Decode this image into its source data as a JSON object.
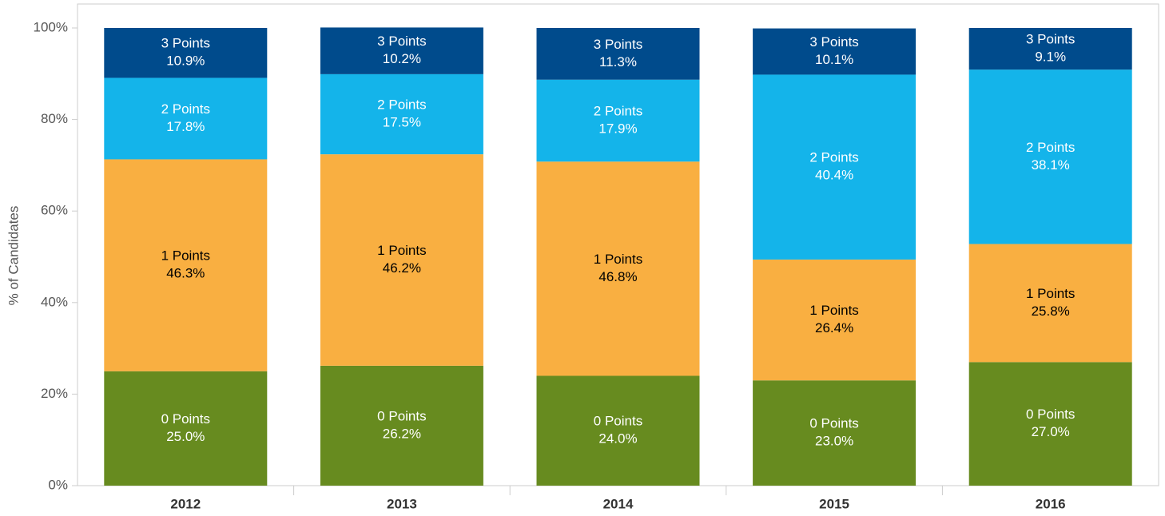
{
  "chart_data": {
    "type": "stacked_bar",
    "y_label": "% of Candidates",
    "categories": [
      "2012",
      "2013",
      "2014",
      "2015",
      "2016"
    ],
    "series": [
      {
        "name": "0 Points",
        "color": "#678b1f",
        "values": [
          25.0,
          26.2,
          24.0,
          23.0,
          27.0
        ],
        "value_labels": [
          "25.0%",
          "26.2%",
          "24.0%",
          "23.0%",
          "27.0%"
        ]
      },
      {
        "name": "1 Points",
        "color": "#f9af41",
        "values": [
          46.3,
          46.2,
          46.8,
          26.4,
          25.8
        ],
        "value_labels": [
          "46.3%",
          "46.2%",
          "46.8%",
          "26.4%",
          "25.8%"
        ]
      },
      {
        "name": "2 Points",
        "color": "#14b4ea",
        "values": [
          17.8,
          17.5,
          17.9,
          40.4,
          38.1
        ],
        "value_labels": [
          "17.8%",
          "17.5%",
          "17.9%",
          "40.4%",
          "38.1%"
        ]
      },
      {
        "name": "3 Points",
        "color": "#004b8c",
        "values": [
          10.9,
          10.2,
          11.3,
          10.1,
          9.1
        ],
        "value_labels": [
          "10.9%",
          "10.2%",
          "11.3%",
          "10.1%",
          "9.1%"
        ]
      }
    ],
    "ylim": [
      0,
      100
    ],
    "yticks": [
      {
        "value": 0,
        "label": "0%"
      },
      {
        "value": 20,
        "label": "20%"
      },
      {
        "value": 40,
        "label": "40%"
      },
      {
        "value": 60,
        "label": "60%"
      },
      {
        "value": 80,
        "label": "80%"
      },
      {
        "value": 100,
        "label": "100%"
      }
    ],
    "grid": false
  }
}
